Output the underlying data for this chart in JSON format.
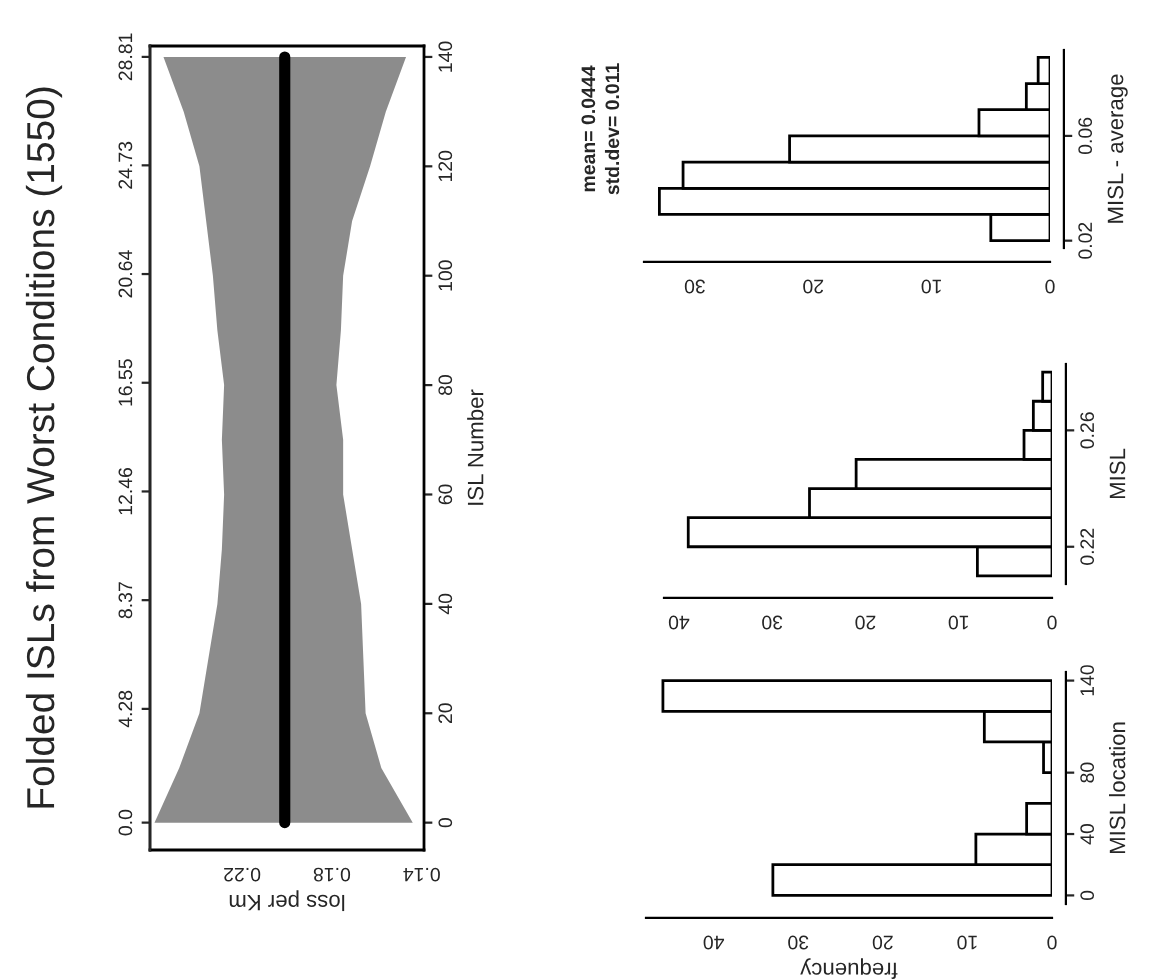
{
  "chart_data": [
    {
      "type": "line",
      "title": "Folded ISLs from Worst Conditions (1550)",
      "xlabel": "loss per Km",
      "ylabel": "ISL Number",
      "orientation": "horizontal",
      "series": [
        {
          "color": "#000000",
          "x": [
            0,
            10,
            20,
            30,
            40,
            50,
            60,
            70,
            80,
            90,
            100,
            110,
            120,
            130,
            140
          ],
          "values": [
            0.201,
            0.201,
            0.201,
            0.201,
            0.201,
            0.201,
            0.201,
            0.201,
            0.201,
            0.201,
            0.201,
            0.201,
            0.201,
            0.201,
            0.201
          ],
          "lower": [
            0.144,
            0.158,
            0.165,
            0.166,
            0.167,
            0.171,
            0.175,
            0.175,
            0.178,
            0.176,
            0.175,
            0.171,
            0.163,
            0.156,
            0.147
          ],
          "upper": [
            0.259,
            0.248,
            0.239,
            0.235,
            0.231,
            0.229,
            0.228,
            0.229,
            0.228,
            0.231,
            0.233,
            0.236,
            0.239,
            0.246,
            0.255
          ]
        }
      ],
      "xlim": [
        0.261,
        0.139
      ],
      "xticks": [
        0.22,
        0.18,
        0.14
      ],
      "ylim": [
        -5,
        142
      ],
      "yticks": [
        0,
        20,
        40,
        60,
        80,
        100,
        120,
        140
      ],
      "y2lim": [
        -1.03,
        29.22
      ],
      "y2ticks": [
        {
          "value": 0,
          "label": "0.0"
        },
        4.28,
        8.37,
        12.46,
        16.55,
        20.64,
        24.73,
        28.81
      ]
    },
    {
      "type": "histogram",
      "orientation": "horizontal",
      "xlabel": "frequency",
      "ylabel": "MISL location",
      "bins": [
        0,
        20,
        40,
        60,
        80,
        100,
        120,
        140
      ],
      "values": [
        33,
        9,
        3,
        0,
        1,
        8,
        46
      ],
      "xlim": [
        48,
        0
      ],
      "xticks": [
        0,
        10,
        20,
        30,
        40
      ],
      "ylim": [
        -5.6,
        145.6
      ],
      "yticks": [
        0,
        40,
        80,
        140
      ]
    },
    {
      "type": "histogram",
      "orientation": "horizontal",
      "ylabel": "MISL",
      "bins": [
        0.21,
        0.22,
        0.23,
        0.24,
        0.25,
        0.26,
        0.27,
        0.28
      ],
      "values": [
        8,
        39,
        26,
        21,
        3,
        2,
        1
      ],
      "xlim": [
        41.6,
        0
      ],
      "xticks": [
        0,
        10,
        20,
        30,
        40
      ],
      "ylim": [
        0.2072,
        0.2828
      ],
      "yticks": [
        0.22,
        0.26
      ]
    },
    {
      "type": "histogram",
      "orientation": "horizontal",
      "ylabel": "MISL - average",
      "bins": [
        0.02,
        0.03,
        0.04,
        0.05,
        0.06,
        0.07,
        0.08,
        0.09
      ],
      "values": [
        5,
        33,
        31,
        22,
        6,
        2,
        1
      ],
      "xlim": [
        34.3,
        0
      ],
      "xticks": [
        0,
        10,
        20,
        30
      ],
      "ylim": [
        0.0172,
        0.0928
      ],
      "yticks": [
        0.02,
        0.06
      ],
      "annotations": [
        "mean= 0.0444",
        "std.dev= 0.011"
      ]
    }
  ]
}
